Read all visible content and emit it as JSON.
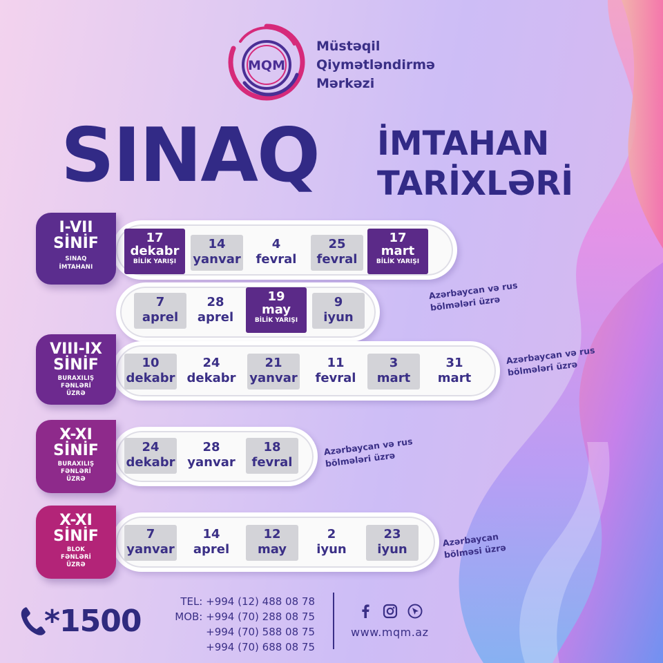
{
  "brand": {
    "logo_letters": "MQM",
    "name_lines": [
      "Müstəqil",
      "Qiymətləndirmə",
      "Mərkəzi"
    ]
  },
  "headline": {
    "main": "SINAQ",
    "line1": "İMTAHAN",
    "line2": "TARİXLƏRİ"
  },
  "rows": [
    {
      "grade": "I-VII",
      "sinif": "SİNİF",
      "desc": [
        "SINAQ",
        "İMTAHANI"
      ],
      "lines": [
        [
          {
            "day": "17",
            "month": "dekabr",
            "tag": "BİLİK YARIŞI",
            "style": "purple"
          },
          {
            "day": "14",
            "month": "yanvar",
            "style": "grey"
          },
          {
            "day": "4",
            "month": "fevral",
            "style": "plain"
          },
          {
            "day": "25",
            "month": "fevral",
            "style": "grey"
          },
          {
            "day": "17",
            "month": "mart",
            "tag": "BİLİK YARIŞI",
            "style": "purple"
          }
        ],
        [
          {
            "day": "7",
            "month": "aprel",
            "style": "grey"
          },
          {
            "day": "28",
            "month": "aprel",
            "style": "plain"
          },
          {
            "day": "19",
            "month": "may",
            "tag": "BİLİK YARIŞI",
            "style": "purple"
          },
          {
            "day": "9",
            "month": "iyun",
            "style": "grey"
          }
        ]
      ],
      "note": [
        "Azərbaycan və rus",
        "bölmələri üzrə"
      ]
    },
    {
      "grade": "VIII-IX",
      "sinif": "SİNİF",
      "desc": [
        "BURAXILIŞ",
        "FƏNLƏRİ",
        "ÜZRƏ"
      ],
      "dates": [
        {
          "day": "10",
          "month": "dekabr",
          "style": "grey"
        },
        {
          "day": "24",
          "month": "dekabr",
          "style": "plain"
        },
        {
          "day": "21",
          "month": "yanvar",
          "style": "grey"
        },
        {
          "day": "11",
          "month": "fevral",
          "style": "plain"
        },
        {
          "day": "3",
          "month": "mart",
          "style": "grey"
        },
        {
          "day": "31",
          "month": "mart",
          "style": "plain"
        }
      ],
      "note": [
        "Azərbaycan və rus",
        "bölmələri üzrə"
      ]
    },
    {
      "grade": "X-XI",
      "sinif": "SİNİF",
      "desc": [
        "BURAXILIŞ",
        "FƏNLƏRİ",
        "ÜZRƏ"
      ],
      "dates": [
        {
          "day": "24",
          "month": "dekabr",
          "style": "grey"
        },
        {
          "day": "28",
          "month": "yanvar",
          "style": "plain"
        },
        {
          "day": "18",
          "month": "fevral",
          "style": "grey"
        }
      ],
      "note": [
        "Azərbaycan və rus",
        "bölmələri üzrə"
      ]
    },
    {
      "grade": "X-XI",
      "sinif": "SİNİF",
      "desc": [
        "BLOK",
        "FƏNLƏRİ",
        "ÜZRƏ"
      ],
      "dates": [
        {
          "day": "7",
          "month": "yanvar",
          "style": "grey"
        },
        {
          "day": "14",
          "month": "aprel",
          "style": "plain"
        },
        {
          "day": "12",
          "month": "may",
          "style": "grey"
        },
        {
          "day": "2",
          "month": "iyun",
          "style": "plain"
        },
        {
          "day": "23",
          "month": "iyun",
          "style": "grey"
        }
      ],
      "note": [
        "Azərbaycan",
        "bölməsi üzrə"
      ]
    }
  ],
  "footer": {
    "hotline": "*1500",
    "contacts": [
      "TEL: +994 (12) 488 08 78",
      "MOB: +994 (70) 288 08 75",
      "+994 (70) 588 08 75",
      "+994 (70) 688 08 75"
    ],
    "social_icons": [
      "facebook-icon",
      "instagram-icon",
      "cursor-icon"
    ],
    "url": "www.mqm.az"
  },
  "colors": {
    "navy": "#322a86",
    "purple_cell": "#5b2a88",
    "grey_cell": "#d3d3d8",
    "badge_1": "#5b2d8e",
    "badge_2": "#6d2a8f",
    "badge_3": "#8e2a8b",
    "badge_4": "#b32478"
  }
}
